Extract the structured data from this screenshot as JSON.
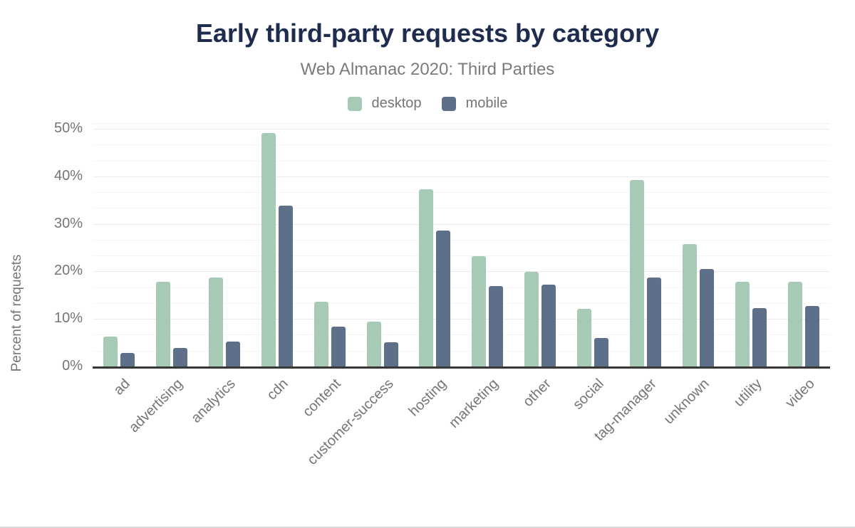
{
  "title": "Early third-party requests by category",
  "subtitle": "Web Almanac 2020: Third Parties",
  "legend": {
    "items": [
      {
        "label": "desktop",
        "color": "#a6cab5"
      },
      {
        "label": "mobile",
        "color": "#5e7089"
      }
    ]
  },
  "colors": {
    "title_text": "#1e2d4d",
    "muted_text": "#757575",
    "axis_line": "#373737",
    "major_gridline": "#ebebeb",
    "minor_gridline": "#f5f5f5",
    "desktop_bar": "#a6cab5",
    "mobile_bar": "#5e7089"
  },
  "chart_data": {
    "type": "bar",
    "title": "Early third-party requests by category",
    "subtitle": "Web Almanac 2020: Third Parties",
    "xlabel": "",
    "ylabel": "Percent of requests",
    "categories": [
      "ad",
      "advertising",
      "analytics",
      "cdn",
      "content",
      "customer-success",
      "hosting",
      "marketing",
      "other",
      "social",
      "tag-manager",
      "unknown",
      "utility",
      "video"
    ],
    "series": [
      {
        "name": "desktop",
        "color": "#a6cab5",
        "values": [
          6.5,
          17.9,
          18.9,
          49.3,
          13.8,
          9.6,
          37.5,
          23.3,
          20.0,
          12.3,
          39.4,
          25.9,
          17.9,
          17.9
        ]
      },
      {
        "name": "mobile",
        "color": "#5e7089",
        "values": [
          3.0,
          4.1,
          5.4,
          34.0,
          8.6,
          5.3,
          28.7,
          17.0,
          17.3,
          6.2,
          18.8,
          20.6,
          12.5,
          12.9
        ]
      }
    ],
    "ylim": [
      0,
      50
    ],
    "ytick_step": 10,
    "ytick_suffix": "%",
    "minor_gridlines_per_major": 3,
    "grid": true,
    "legend_position": "top",
    "x_label_rotation": -45
  }
}
